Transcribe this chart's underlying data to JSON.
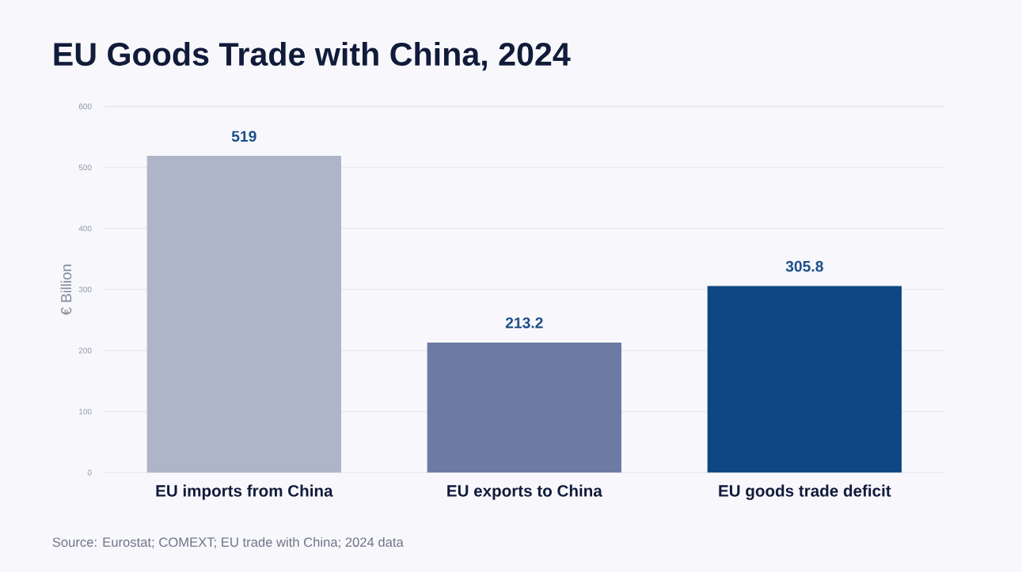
{
  "chart_data": {
    "type": "bar",
    "title": "EU Goods Trade with China, 2024",
    "ylabel": "€ Billion",
    "categories": [
      "EU imports from China",
      "EU exports to China",
      "EU goods trade deficit"
    ],
    "values": [
      519,
      213.2,
      305.8
    ],
    "value_labels": [
      "519",
      "213.2",
      "305.8"
    ],
    "colors": [
      "#adb5c7",
      "#6b7ba1",
      "#0e4783"
    ],
    "ylim": [
      0,
      600
    ],
    "yticks": [
      0,
      100,
      200,
      300,
      400,
      500,
      600
    ],
    "grid": "y",
    "annotations": [
      "Source: Eurostat; COMEXT; EU trade with China; 2024 data"
    ]
  }
}
